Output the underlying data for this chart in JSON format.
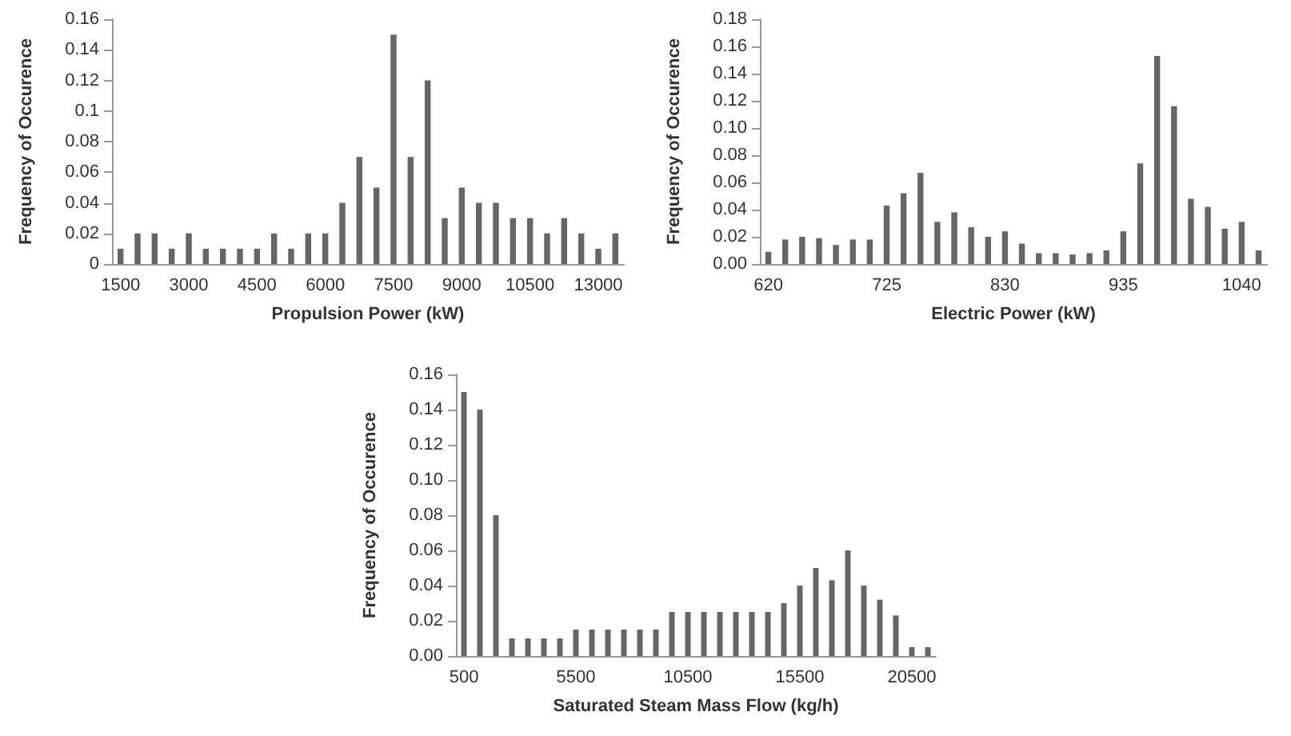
{
  "chart_data": [
    {
      "type": "bar",
      "xlabel": "Propulsion Power (kW)",
      "ylabel": "Frequency of Occurence",
      "color": "#666666",
      "categories": [
        "1500",
        null,
        null,
        null,
        "3000",
        null,
        null,
        null,
        "4500",
        null,
        null,
        null,
        "6000",
        null,
        null,
        null,
        "7500",
        null,
        null,
        null,
        "9000",
        null,
        null,
        null,
        "10500",
        null,
        null,
        null,
        "13000",
        null
      ],
      "values": [
        0.01,
        0.02,
        0.02,
        0.01,
        0.02,
        0.01,
        0.01,
        0.01,
        0.01,
        0.02,
        0.01,
        0.02,
        0.02,
        0.04,
        0.07,
        0.05,
        0.15,
        0.07,
        0.12,
        0.03,
        0.05,
        0.04,
        0.04,
        0.03,
        0.03,
        0.02,
        0.03,
        0.02,
        0.01,
        0.02
      ],
      "ylim": [
        0,
        0.16
      ],
      "yticks": [
        0,
        0.02,
        0.04,
        0.06,
        0.08,
        0.1,
        0.12,
        0.14,
        0.16
      ]
    },
    {
      "type": "bar",
      "xlabel": "Electric Power (kW)",
      "ylabel": "Frequency of Occurence",
      "color": "#666666",
      "categories": [
        "620",
        null,
        null,
        null,
        null,
        null,
        null,
        "725",
        null,
        null,
        null,
        null,
        null,
        null,
        "830",
        null,
        null,
        null,
        null,
        null,
        null,
        "935",
        null,
        null,
        null,
        null,
        null,
        null,
        "1040",
        null
      ],
      "values": [
        0.009,
        0.018,
        0.02,
        0.019,
        0.014,
        0.018,
        0.018,
        0.043,
        0.052,
        0.067,
        0.031,
        0.038,
        0.027,
        0.02,
        0.024,
        0.015,
        0.008,
        0.008,
        0.007,
        0.008,
        0.01,
        0.024,
        0.074,
        0.153,
        0.116,
        0.048,
        0.042,
        0.026,
        0.031,
        0.01
      ],
      "ylim": [
        0,
        0.18
      ],
      "yticks": [
        {
          "value": 0,
          "label": "0.00"
        },
        {
          "value": 0.02,
          "label": "0.02"
        },
        {
          "value": 0.04,
          "label": "0.04"
        },
        {
          "value": 0.06,
          "label": "0.06"
        },
        {
          "value": 0.08,
          "label": "0.08"
        },
        {
          "value": 0.1,
          "label": "0.10"
        },
        {
          "value": 0.12,
          "label": "0.12"
        },
        {
          "value": 0.14,
          "label": "0.14"
        },
        {
          "value": 0.16,
          "label": "0.16"
        },
        {
          "value": 0.18,
          "label": "0.18"
        }
      ]
    },
    {
      "type": "bar",
      "xlabel": "Saturated Steam Mass Flow (kg/h)",
      "ylabel": "Frequency of Occurence",
      "color": "#666666",
      "categories": [
        "500",
        null,
        null,
        null,
        null,
        null,
        null,
        "5500",
        null,
        null,
        null,
        null,
        null,
        null,
        "10500",
        null,
        null,
        null,
        null,
        null,
        null,
        "15500",
        null,
        null,
        null,
        null,
        null,
        null,
        "20500",
        null
      ],
      "values": [
        0.15,
        0.14,
        0.08,
        0.01,
        0.01,
        0.01,
        0.01,
        0.015,
        0.015,
        0.015,
        0.015,
        0.015,
        0.015,
        0.025,
        0.025,
        0.025,
        0.025,
        0.025,
        0.025,
        0.025,
        0.03,
        0.04,
        0.05,
        0.043,
        0.06,
        0.04,
        0.032,
        0.023,
        0.005,
        0.005
      ],
      "ylim": [
        0,
        0.16
      ],
      "yticks": [
        {
          "value": 0,
          "label": "0.00"
        },
        {
          "value": 0.02,
          "label": "0.02"
        },
        {
          "value": 0.04,
          "label": "0.04"
        },
        {
          "value": 0.06,
          "label": "0.06"
        },
        {
          "value": 0.08,
          "label": "0.08"
        },
        {
          "value": 0.1,
          "label": "0.10"
        },
        {
          "value": 0.12,
          "label": "0.12"
        },
        {
          "value": 0.14,
          "label": "0.14"
        },
        {
          "value": 0.16,
          "label": "0.16"
        }
      ]
    }
  ]
}
